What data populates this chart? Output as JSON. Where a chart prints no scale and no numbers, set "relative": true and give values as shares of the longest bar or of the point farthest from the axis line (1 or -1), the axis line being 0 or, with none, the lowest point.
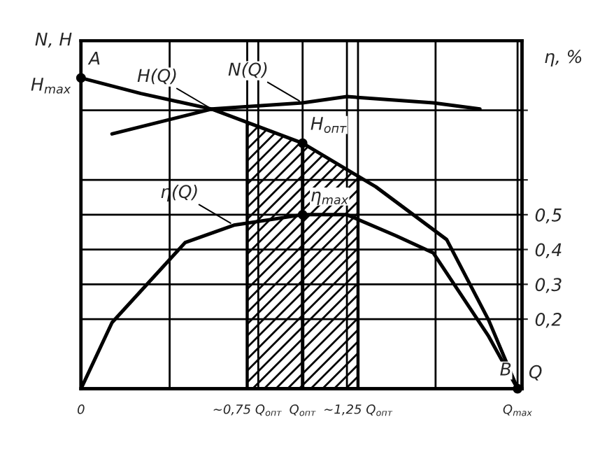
{
  "chart_data": {
    "type": "line",
    "xlabel": "Q",
    "ylabel": "N, H",
    "y2label": "η, %",
    "relative": true,
    "xlim": [
      0,
      1.99
    ],
    "y2lim": [
      0,
      1.0
    ],
    "xticks": [
      {
        "value": 0,
        "label": "0"
      },
      {
        "value": 0.4,
        "label": null
      },
      {
        "value": 0.75,
        "label": "~0,75 Q$_{опт}$"
      },
      {
        "value": 0.8,
        "label": null
      },
      {
        "value": 1.0,
        "label": "Q$_{опт}$"
      },
      {
        "value": 1.2,
        "label": null
      },
      {
        "value": 1.25,
        "label": "~1,25 Q$_{опт}$"
      },
      {
        "value": 1.6,
        "label": null
      },
      {
        "value": 1.97,
        "label": "Q$_{max}$"
      }
    ],
    "y2ticks": [
      {
        "value": 0.2,
        "label": "0,2"
      },
      {
        "value": 0.3,
        "label": "0,3"
      },
      {
        "value": 0.4,
        "label": "0,4"
      },
      {
        "value": 0.5,
        "label": "0,5"
      },
      {
        "value": 0.6,
        "label": null
      },
      {
        "value": 0.8,
        "label": null
      }
    ],
    "grid": true,
    "line_style": "solid",
    "series": [
      {
        "name": "H(Q)",
        "color": "#000000",
        "x": [
          0,
          0.27,
          0.59,
          1.0,
          1.33,
          1.65,
          1.84,
          1.97
        ],
        "values": [
          1.0,
          0.95,
          0.9,
          0.79,
          0.65,
          0.48,
          0.22,
          0
        ]
      },
      {
        "name": "N(Q)",
        "color": "#000000",
        "x": [
          0.14,
          0.59,
          1.0,
          1.2,
          1.59,
          1.8
        ],
        "values": [
          0.82,
          0.9,
          0.92,
          0.94,
          0.92,
          0.9
        ]
      },
      {
        "name": "η(Q)",
        "color": "#000000",
        "axis": "y2",
        "x": [
          0,
          0.14,
          0.47,
          0.69,
          1.0,
          1.2,
          1.42,
          1.59,
          1.84,
          1.97
        ],
        "values": [
          0,
          0.19,
          0.42,
          0.47,
          0.5,
          0.5,
          0.44,
          0.39,
          0.15,
          0
        ]
      }
    ],
    "bands": [
      {
        "axis": "x",
        "from": 0.75,
        "to": 1.25,
        "color": "#000000"
      }
    ],
    "ref_lines": [
      {
        "axis": "x",
        "value": 1.0,
        "color": "#000000"
      }
    ],
    "annotations": [
      {
        "text": "A",
        "x": 0,
        "y": 1.0
      },
      {
        "text": "H$_{max}$",
        "x": 0,
        "y": 1.0
      },
      {
        "text": "H$_{опт}$",
        "x": 1.0,
        "y": 0.79
      },
      {
        "text": "η$_{max}$",
        "x": 1.0,
        "y": 0.56
      },
      {
        "text": "B",
        "x": 1.97,
        "y": 0
      }
    ]
  }
}
